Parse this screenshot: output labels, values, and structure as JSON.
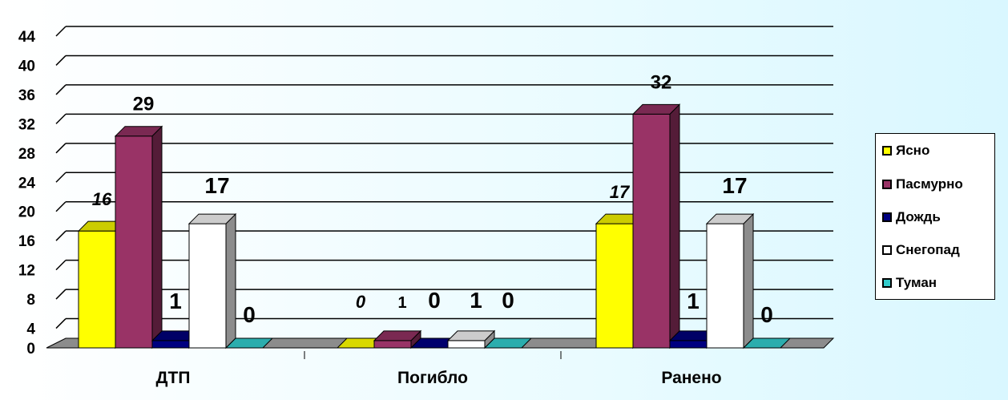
{
  "chart_data": {
    "type": "bar",
    "title": "",
    "xlabel": "",
    "ylabel": "",
    "ylim": [
      0,
      44
    ],
    "yticks": [
      0,
      4,
      8,
      12,
      16,
      20,
      24,
      28,
      32,
      36,
      40,
      44
    ],
    "grid": true,
    "legend_position": "right",
    "categories": [
      "ДТП",
      "Погибло",
      "Ранено"
    ],
    "series": [
      {
        "name": "Ясно",
        "color": "#ffff00",
        "values": [
          16,
          0,
          17
        ],
        "labels": [
          "16",
          "0",
          "17"
        ],
        "label_italic": true
      },
      {
        "name": "Пасмурно",
        "color": "#993366",
        "values": [
          29,
          1,
          32
        ],
        "labels": [
          "29",
          "1",
          "32"
        ],
        "label_italic": false
      },
      {
        "name": "Дождь",
        "color": "#000080",
        "values": [
          1,
          0,
          1
        ],
        "labels": [
          "1",
          "0",
          "1"
        ],
        "label_italic": false
      },
      {
        "name": "Снегопад",
        "color": "#ffffff",
        "values": [
          17,
          1,
          17
        ],
        "labels": [
          "17",
          "1",
          "17"
        ],
        "label_italic": false
      },
      {
        "name": "Туман",
        "color": "#33cccc",
        "values": [
          0,
          0,
          0
        ],
        "labels": [
          "0",
          "0",
          "0"
        ],
        "label_italic": false
      }
    ]
  }
}
